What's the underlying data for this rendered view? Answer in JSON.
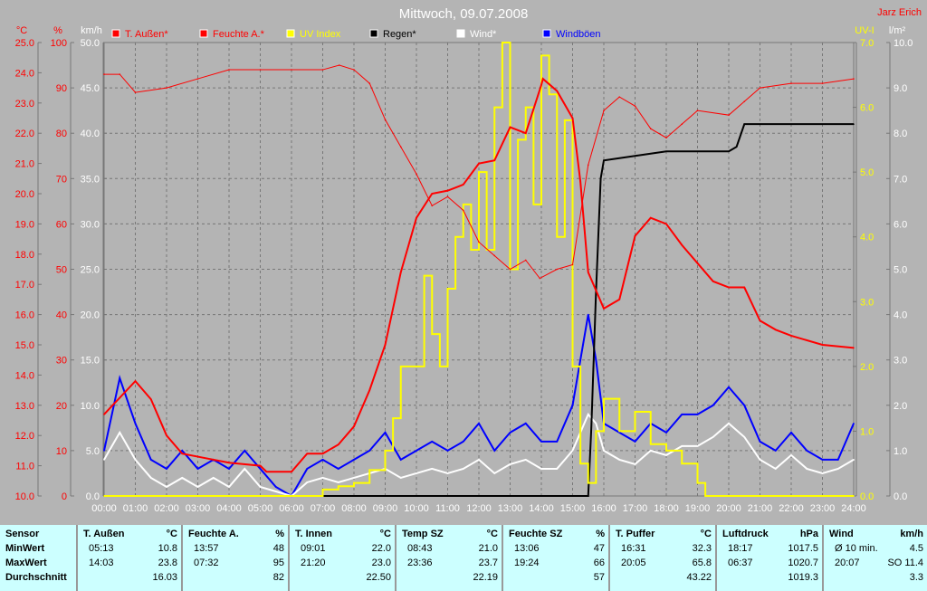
{
  "title": "Mittwoch, 09.07.2008",
  "author": "Jarz Erich",
  "colors": {
    "background": "#b4b4b4",
    "temp": "#ff0000",
    "humidity": "#ff0000",
    "uv": "#ffff00",
    "rain": "#000000",
    "wind": "#ffffff",
    "gust": "#0000ff",
    "stats_bg": "#ccffff"
  },
  "chart_data": {
    "type": "line",
    "title": "Mittwoch, 09.07.2008",
    "grid": true,
    "legend_placement": "top",
    "x_ticks": [
      "00:00",
      "01:00",
      "02:00",
      "03:00",
      "04:00",
      "05:00",
      "06:00",
      "07:00",
      "08:00",
      "09:00",
      "10:00",
      "11:00",
      "12:00",
      "13:00",
      "14:00",
      "15:00",
      "16:00",
      "17:00",
      "18:00",
      "19:00",
      "20:00",
      "21:00",
      "22:00",
      "23:00",
      "24:00"
    ],
    "axes": {
      "temp": {
        "unit": "°C",
        "range": [
          10,
          25
        ],
        "step": 1,
        "side": "left"
      },
      "humidity": {
        "unit": "%",
        "range": [
          0,
          100
        ],
        "step": 10,
        "side": "left"
      },
      "wind": {
        "unit": "km/h",
        "range": [
          0,
          50
        ],
        "step": 5,
        "side": "left"
      },
      "uv": {
        "unit": "UV-I",
        "range": [
          0,
          7
        ],
        "step": 1,
        "side": "right"
      },
      "rain": {
        "unit": "l/m²",
        "range": [
          0,
          10
        ],
        "step": 1,
        "side": "right"
      }
    },
    "series": [
      {
        "name": "T. Außen*",
        "axis": "temp",
        "color": "#ff0000",
        "width": 2,
        "x": [
          0,
          1,
          1.5,
          2,
          2.5,
          3,
          4,
          5,
          5.2,
          6,
          6.5,
          7,
          7.5,
          8,
          8.5,
          9,
          9.5,
          10,
          10.5,
          11,
          11.5,
          12,
          12.5,
          13,
          13.5,
          14,
          14.05,
          14.5,
          15,
          15.25,
          15.5,
          16,
          16.5,
          17,
          17.5,
          18,
          18.5,
          19,
          19.5,
          20,
          20.5,
          21,
          21.5,
          22,
          23,
          24
        ],
        "y": [
          12.7,
          13.8,
          13.2,
          12.0,
          11.4,
          11.3,
          11.1,
          11.0,
          10.8,
          10.8,
          11.4,
          11.4,
          11.7,
          12.3,
          13.5,
          15.0,
          17.4,
          19.2,
          20.0,
          20.1,
          20.3,
          21.0,
          21.1,
          22.2,
          22.0,
          23.6,
          23.8,
          23.4,
          22.5,
          20.4,
          17.4,
          16.2,
          16.5,
          18.6,
          19.2,
          19.0,
          18.3,
          17.7,
          17.1,
          16.9,
          16.9,
          15.8,
          15.5,
          15.3,
          15.0,
          14.9
        ]
      },
      {
        "name": "Feuchte A.*",
        "axis": "humidity",
        "color": "#ff0000",
        "width": 1,
        "x": [
          0,
          0.5,
          1,
          2,
          3,
          4,
          5,
          6,
          7,
          7.53,
          8,
          8.5,
          9,
          9.5,
          10,
          10.5,
          11,
          11.5,
          12,
          12.5,
          13,
          13.5,
          13.95,
          14.5,
          15,
          15.5,
          16,
          16.5,
          17,
          17.5,
          18,
          18.5,
          19,
          20,
          20.5,
          21,
          22,
          23,
          24
        ],
        "y": [
          93,
          93,
          89,
          90,
          92,
          94,
          94,
          94,
          94,
          95,
          94,
          91,
          83,
          77,
          71,
          64,
          66,
          63,
          56,
          53,
          50,
          52,
          48,
          50,
          51,
          73,
          85,
          88,
          86,
          81,
          79,
          82,
          85,
          84,
          87,
          90,
          91,
          91,
          92
        ]
      },
      {
        "name": "UV Index",
        "axis": "uv",
        "color": "#ffff00",
        "width": 2,
        "x": [
          0,
          6.5,
          7,
          7.5,
          8,
          8.5,
          9,
          9.25,
          9.5,
          10,
          10.25,
          10.5,
          10.75,
          11,
          11.25,
          11.5,
          11.75,
          12,
          12.25,
          12.5,
          12.75,
          13,
          13.25,
          13.5,
          13.75,
          14,
          14.25,
          14.5,
          14.75,
          15,
          15.25,
          15.5,
          15.75,
          16,
          16.5,
          17,
          17.5,
          18,
          18.5,
          19,
          19.25,
          24
        ],
        "y": [
          0,
          0,
          0.1,
          0.15,
          0.2,
          0.4,
          0.7,
          1.2,
          2.0,
          2.0,
          3.4,
          2.5,
          2.0,
          3.2,
          4.0,
          4.5,
          3.8,
          5.0,
          3.8,
          6.0,
          7.0,
          3.5,
          5.5,
          6.0,
          4.5,
          6.8,
          6.2,
          4.0,
          5.8,
          2.0,
          0.5,
          0.2,
          1.0,
          1.5,
          1.0,
          1.3,
          0.8,
          0.7,
          0.5,
          0.2,
          0,
          0
        ]
      },
      {
        "name": "Regen*",
        "axis": "rain",
        "color": "#000000",
        "width": 2,
        "x": [
          0,
          15.5,
          15.6,
          15.75,
          15.9,
          16,
          17,
          18,
          19,
          20,
          20.25,
          20.5,
          24
        ],
        "y": [
          0,
          0,
          1.5,
          4.5,
          7.0,
          7.4,
          7.5,
          7.6,
          7.6,
          7.6,
          7.7,
          8.2,
          8.2
        ]
      },
      {
        "name": "Wind*",
        "axis": "wind",
        "color": "#ffffff",
        "width": 2,
        "x": [
          0,
          0.5,
          1,
          1.5,
          2,
          2.5,
          3,
          3.5,
          4,
          4.5,
          5,
          5.5,
          6,
          6.5,
          7,
          7.5,
          8,
          8.5,
          9,
          9.5,
          10,
          10.5,
          11,
          11.5,
          12,
          12.5,
          13,
          13.5,
          14,
          14.5,
          15,
          15.5,
          15.75,
          16,
          16.5,
          17,
          17.5,
          18,
          18.5,
          19,
          19.5,
          20,
          20.5,
          21,
          21.5,
          22,
          22.5,
          23,
          23.5,
          24
        ],
        "y": [
          4,
          7,
          4,
          2,
          1,
          2,
          1,
          2,
          1,
          3,
          1,
          0.5,
          0,
          1.5,
          2,
          1.5,
          2,
          2.5,
          3,
          2,
          2.5,
          3,
          2.5,
          3,
          4,
          2.5,
          3.5,
          4,
          3,
          3,
          5,
          9,
          8,
          5,
          4,
          3.5,
          5,
          4.5,
          5.5,
          5.5,
          6.5,
          8,
          6.5,
          4,
          3,
          4.5,
          3,
          2.5,
          3,
          4
        ]
      },
      {
        "name": "Windböen",
        "axis": "wind",
        "color": "#0000ff",
        "width": 2,
        "x": [
          0,
          0.5,
          1,
          1.5,
          2,
          2.5,
          3,
          3.5,
          4,
          4.5,
          5,
          5.5,
          6,
          6.5,
          7,
          7.5,
          8,
          8.5,
          9,
          9.5,
          10,
          10.5,
          11,
          11.5,
          12,
          12.5,
          13,
          13.5,
          14,
          14.5,
          15,
          15.5,
          15.75,
          16,
          16.5,
          17,
          17.5,
          18,
          18.5,
          19,
          19.5,
          20,
          20.5,
          21,
          21.5,
          22,
          22.5,
          23,
          23.5,
          24
        ],
        "y": [
          5,
          13,
          8,
          4,
          3,
          5,
          3,
          4,
          3,
          5,
          3,
          1,
          0,
          3,
          4,
          3,
          4,
          5,
          7,
          4,
          5,
          6,
          5,
          6,
          8,
          5,
          7,
          8,
          6,
          6,
          10,
          20,
          15,
          8,
          7,
          6,
          8,
          7,
          9,
          9,
          10,
          12,
          10,
          6,
          5,
          7,
          5,
          4,
          4,
          8
        ]
      }
    ]
  },
  "stats": {
    "row_labels": [
      "Sensor",
      "MinWert",
      "MaxWert",
      "Durchschnitt"
    ],
    "columns": [
      {
        "name": "T. Außen",
        "unit": "°C",
        "min_time": "05:13",
        "min": "10.8",
        "max_time": "14:03",
        "max": "23.8",
        "avg": "16.03"
      },
      {
        "name": "Feuchte A.",
        "unit": "%",
        "min_time": "13:57",
        "min": "48",
        "max_time": "07:32",
        "max": "95",
        "avg": "82"
      },
      {
        "name": "T. Innen",
        "unit": "°C",
        "min_time": "09:01",
        "min": "22.0",
        "max_time": "21:20",
        "max": "23.0",
        "avg": "22.50"
      },
      {
        "name": "Temp SZ",
        "unit": "°C",
        "min_time": "08:43",
        "min": "21.0",
        "max_time": "23:36",
        "max": "23.7",
        "avg": "22.19"
      },
      {
        "name": "Feuchte SZ",
        "unit": "%",
        "min_time": "13:06",
        "min": "47",
        "max_time": "19:24",
        "max": "66",
        "avg": "57"
      },
      {
        "name": "T. Puffer",
        "unit": "°C",
        "min_time": "16:31",
        "min": "32.3",
        "max_time": "20:05",
        "max": "65.8",
        "avg": "43.22"
      },
      {
        "name": "Luftdruck",
        "unit": "hPa",
        "min_time": "18:17",
        "min": "1017.5",
        "max_time": "06:37",
        "max": "1020.7",
        "avg": "1019.3"
      },
      {
        "name": "Wind",
        "unit": "km/h",
        "min_time": "Ø 10 min.",
        "min": "4.5",
        "max_time": "20:07",
        "max": "SO 11.4",
        "avg": "3.3"
      }
    ]
  }
}
